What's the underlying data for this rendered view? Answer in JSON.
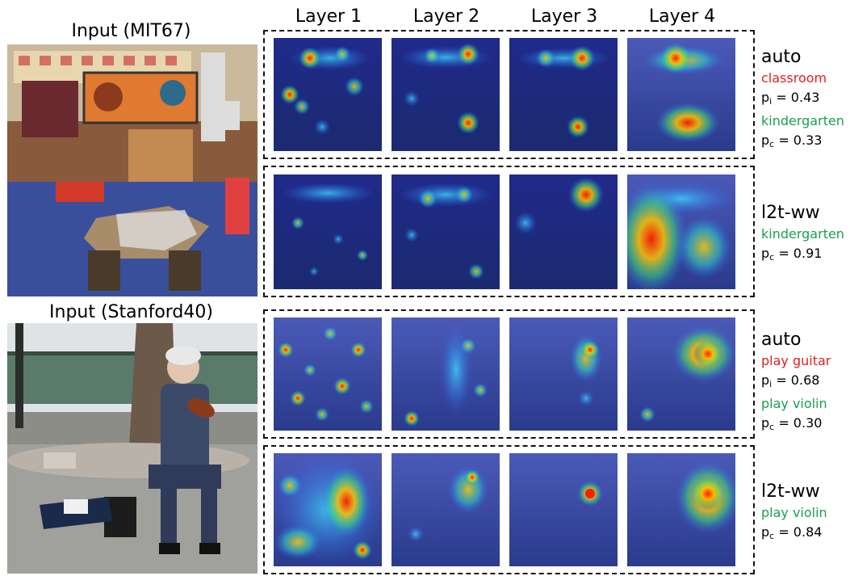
{
  "inputs": {
    "mit_title": "Input (MIT67)",
    "stanford_title": "Input (Stanford40)"
  },
  "layers": [
    "Layer 1",
    "Layer 2",
    "Layer 3",
    "Layer 4"
  ],
  "rows": [
    {
      "method": "auto",
      "wrong_label": "classroom",
      "pi_label": "p",
      "pi_sub": "i",
      "pi_value": "= 0.43",
      "correct_label": "kindergarten",
      "pc_label": "p",
      "pc_sub": "c",
      "pc_value": "= 0.33"
    },
    {
      "method": "l2t-ww",
      "correct_label": "kindergarten",
      "pc_label": "p",
      "pc_sub": "c",
      "pc_value": "= 0.91"
    },
    {
      "method": "auto",
      "wrong_label": "play guitar",
      "pi_label": "p",
      "pi_sub": "i",
      "pi_value": "= 0.68",
      "correct_label": "play violin",
      "pc_label": "p",
      "pc_sub": "c",
      "pc_value": "= 0.30"
    },
    {
      "method": "l2t-ww",
      "correct_label": "play violin",
      "pc_label": "p",
      "pc_sub": "c",
      "pc_value": "= 0.84"
    }
  ],
  "colors": {
    "wrong": "#e02020",
    "correct": "#1aa050"
  }
}
